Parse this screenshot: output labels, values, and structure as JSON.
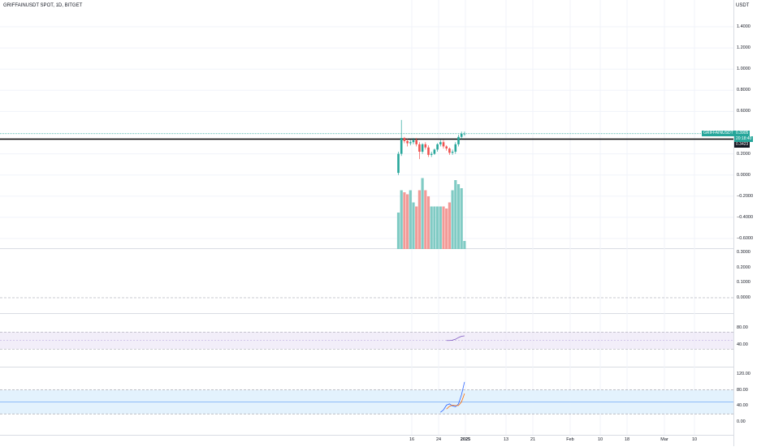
{
  "header": {
    "symbol_title": "GRIFFAINUSDT SPOT, 1D, BITGET",
    "currency_label": "USDT"
  },
  "price_scale": {
    "main_ticks": [
      "1.4000",
      "1.2000",
      "1.0000",
      "0.8000",
      "0.6000",
      "0.2000",
      "0.0000",
      "−0.2000",
      "−0.4000",
      "−0.6000"
    ],
    "symbol_badge": "GRIFFAINUSDT",
    "last_price": "0.3905",
    "countdown": "20:18:40",
    "black_line_price": "0.3423"
  },
  "volume_scale": {
    "ticks": [
      "0.3000",
      "0.2000",
      "0.1000",
      "0.0000"
    ]
  },
  "rsi_scale": {
    "ticks": [
      "80.00",
      "40.00"
    ]
  },
  "stoch_scale": {
    "ticks": [
      "120.00",
      "80.00",
      "40.00",
      "0.00"
    ]
  },
  "time_axis": {
    "labels": [
      {
        "text": "16",
        "bold": false
      },
      {
        "text": "24",
        "bold": false
      },
      {
        "text": "2025",
        "bold": true
      },
      {
        "text": "13",
        "bold": false
      },
      {
        "text": "21",
        "bold": false
      },
      {
        "text": "Feb",
        "bold": false
      },
      {
        "text": "10",
        "bold": false
      },
      {
        "text": "18",
        "bold": false
      },
      {
        "text": "Mar",
        "bold": false
      },
      {
        "text": "10",
        "bold": false
      }
    ]
  },
  "colors": {
    "up": "#26a69a",
    "down": "#ef5350",
    "volume_up": "#80cbc4",
    "volume_down": "#f29a97",
    "rsi_line": "#7e57c2",
    "stoch_k": "#2962ff",
    "stoch_d": "#ff6d00",
    "band_fill": "#e3f2fd"
  },
  "chart_data": {
    "type": "candlestick",
    "x": [
      "2024-12-11",
      "2024-12-12",
      "2024-12-13",
      "2024-12-14",
      "2024-12-15",
      "2024-12-16",
      "2024-12-17",
      "2024-12-18",
      "2024-12-19",
      "2024-12-20",
      "2024-12-21",
      "2024-12-22",
      "2024-12-23",
      "2024-12-24",
      "2024-12-25",
      "2024-12-26",
      "2024-12-27",
      "2024-12-28",
      "2024-12-29",
      "2024-12-30",
      "2024-12-31",
      "2025-01-01",
      "2025-01-02"
    ],
    "open": [
      0.02,
      0.2,
      0.35,
      0.32,
      0.3,
      0.31,
      0.33,
      0.29,
      0.22,
      0.29,
      0.26,
      0.19,
      0.2,
      0.24,
      0.29,
      0.31,
      0.27,
      0.25,
      0.21,
      0.22,
      0.29,
      0.36,
      0.39
    ],
    "close": [
      0.2,
      0.35,
      0.32,
      0.3,
      0.31,
      0.33,
      0.29,
      0.22,
      0.29,
      0.26,
      0.19,
      0.2,
      0.24,
      0.29,
      0.31,
      0.27,
      0.25,
      0.21,
      0.22,
      0.29,
      0.36,
      0.39,
      0.3905
    ],
    "high": [
      0.22,
      0.52,
      0.36,
      0.34,
      0.33,
      0.35,
      0.35,
      0.31,
      0.3,
      0.31,
      0.28,
      0.22,
      0.25,
      0.3,
      0.33,
      0.33,
      0.28,
      0.26,
      0.24,
      0.31,
      0.38,
      0.41,
      0.41
    ],
    "low": [
      0.0,
      0.18,
      0.3,
      0.27,
      0.28,
      0.29,
      0.27,
      0.15,
      0.2,
      0.24,
      0.17,
      0.17,
      0.19,
      0.22,
      0.27,
      0.25,
      0.23,
      0.19,
      0.19,
      0.2,
      0.27,
      0.34,
      0.37
    ],
    "volume": [
      0.18,
      0.29,
      0.28,
      0.27,
      0.29,
      0.23,
      0.21,
      0.29,
      0.35,
      0.29,
      0.26,
      0.21,
      0.21,
      0.21,
      0.21,
      0.21,
      0.2,
      0.23,
      0.29,
      0.34,
      0.32,
      0.3,
      0.04
    ],
    "rsi": [
      null,
      null,
      null,
      null,
      null,
      null,
      null,
      null,
      null,
      null,
      null,
      null,
      null,
      null,
      null,
      null,
      50,
      50,
      51,
      53,
      57,
      60,
      61
    ],
    "stoch_k": [
      null,
      null,
      null,
      null,
      null,
      null,
      null,
      null,
      null,
      null,
      null,
      null,
      null,
      null,
      24,
      30,
      42,
      45,
      40,
      38,
      45,
      68,
      100
    ],
    "stoch_d": [
      null,
      null,
      null,
      null,
      null,
      null,
      null,
      null,
      null,
      null,
      null,
      null,
      null,
      null,
      null,
      null,
      32,
      39,
      42,
      41,
      41,
      50,
      71
    ],
    "ylim_price": [
      -0.6,
      1.4
    ],
    "ylim_volume": [
      0,
      0.35
    ],
    "rsi_bands": [
      70,
      30
    ],
    "stoch_bands": [
      80,
      20
    ]
  }
}
